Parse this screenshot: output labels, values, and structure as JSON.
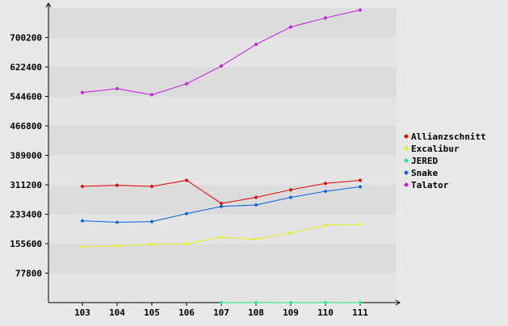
{
  "chart_data": {
    "type": "line",
    "title": "",
    "xlabel": "",
    "ylabel": "",
    "categories": [
      "103",
      "104",
      "105",
      "106",
      "107",
      "108",
      "109",
      "110",
      "111"
    ],
    "y_ticks": [
      77800,
      155600,
      233400,
      311200,
      389000,
      466800,
      544600,
      622400,
      700200
    ],
    "ylim": [
      0,
      778000
    ],
    "grid": "horizontal alternating bands",
    "legend_position": "right",
    "colors": {
      "background": "#e8e8e8",
      "band_light": "#e4e4e4",
      "band_dark": "#dcdcdc",
      "axis": "#000000"
    },
    "series": [
      {
        "name": "Allianzschnitt",
        "color": "#e00000",
        "values": [
          307000,
          310000,
          307000,
          323000,
          262000,
          278000,
          298000,
          315000,
          323000
        ]
      },
      {
        "name": "Excalibur",
        "color": "#e8f018",
        "values": [
          147000,
          150000,
          154000,
          155000,
          173000,
          167000,
          184000,
          204000,
          207000
        ]
      },
      {
        "name": "JERED",
        "color": "#18f080",
        "values": [
          0,
          0,
          0,
          0,
          0,
          0,
          0,
          0,
          0
        ],
        "start_index": 4
      },
      {
        "name": "Snake",
        "color": "#0060e0",
        "values": [
          216000,
          212000,
          214000,
          235000,
          254000,
          258000,
          278000,
          294000,
          306000
        ]
      },
      {
        "name": "Talator",
        "color": "#c018e0",
        "values": [
          555000,
          565000,
          549000,
          578000,
          625000,
          682000,
          728000,
          752000,
          773000
        ]
      }
    ]
  }
}
